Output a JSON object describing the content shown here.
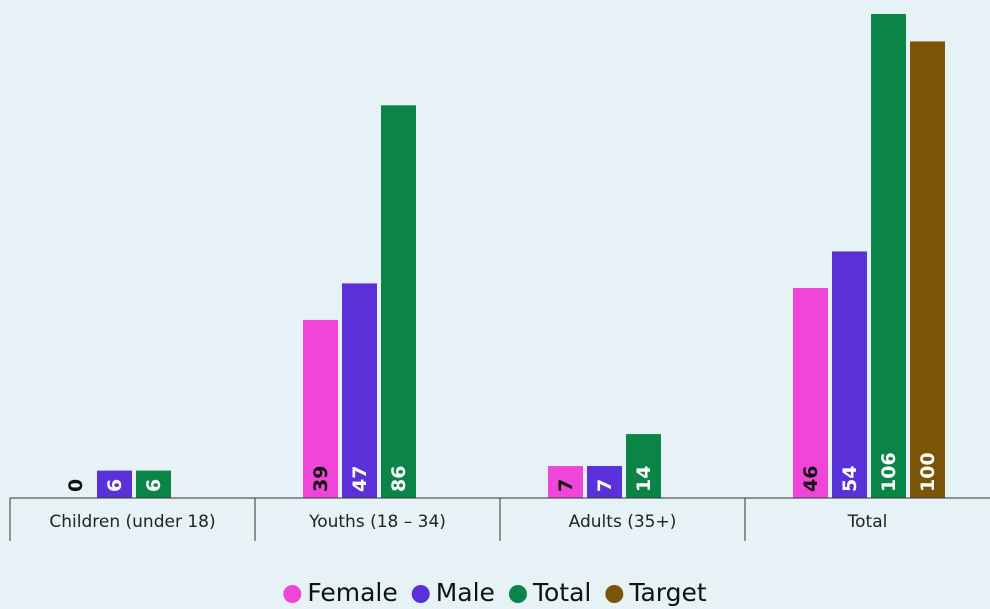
{
  "chart_data": {
    "type": "bar",
    "categories": [
      "Children (under 18)",
      "Youths (18 – 34)",
      "Adults (35+)",
      "Total"
    ],
    "series": [
      {
        "name": "Female",
        "color": "#ef45d9",
        "values": [
          0,
          39,
          7,
          46
        ]
      },
      {
        "name": "Male",
        "color": "#5a30d8",
        "values": [
          6,
          47,
          7,
          54
        ]
      },
      {
        "name": "Total",
        "color": "#0a8547",
        "values": [
          6,
          86,
          14,
          106
        ]
      },
      {
        "name": "Target",
        "color": "#7a5507",
        "values": [
          null,
          null,
          null,
          100
        ]
      }
    ],
    "legend": "bottom"
  }
}
